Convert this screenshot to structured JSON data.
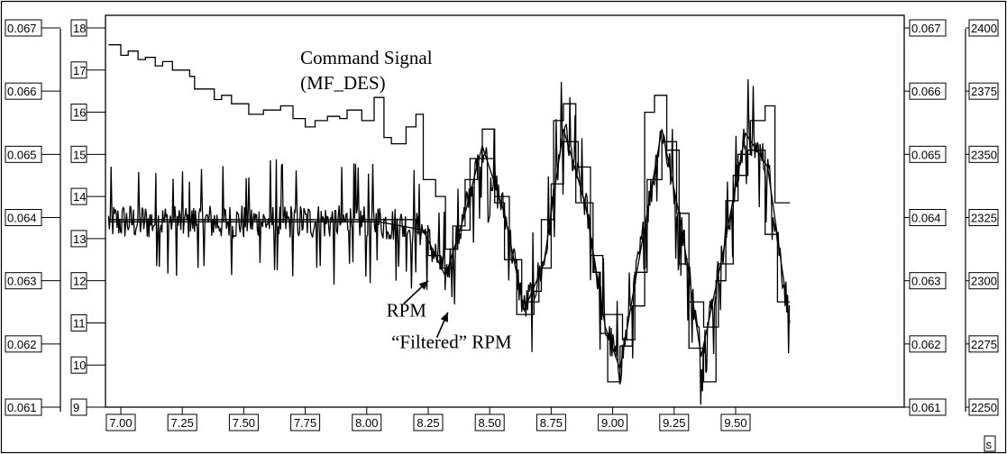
{
  "chart_data": {
    "type": "line",
    "title": "",
    "xlabel": "",
    "x_unit": "s",
    "xlim": [
      6.95,
      9.72
    ],
    "x_ticks": [
      "7.00",
      "7.25",
      "7.50",
      "7.75",
      "8.00",
      "8.25",
      "8.50",
      "8.75",
      "9.00",
      "9.25",
      "9.50"
    ],
    "axes": [
      {
        "id": "left_outer",
        "ticks": [
          "0.067",
          "0.066",
          "0.065",
          "0.064",
          "0.063",
          "0.062",
          "0.061"
        ],
        "lim": [
          0.061,
          0.067
        ]
      },
      {
        "id": "left_inner",
        "ticks": [
          "18",
          "17",
          "16",
          "15",
          "14",
          "13",
          "12",
          "11",
          "10",
          "9"
        ],
        "lim": [
          9,
          18
        ]
      },
      {
        "id": "right_inner",
        "ticks": [
          "0.067",
          "0.066",
          "0.065",
          "0.064",
          "0.063",
          "0.062",
          "0.061"
        ],
        "lim": [
          0.061,
          0.067
        ]
      },
      {
        "id": "right_outer",
        "ticks": [
          "2400",
          "2375",
          "2350",
          "2325",
          "2300",
          "2275",
          "2250"
        ],
        "lim": [
          2250,
          2400
        ]
      }
    ],
    "grid": false,
    "annotations": [
      {
        "text": "Command Signal",
        "x": 7.73,
        "y": 17.15,
        "axis": "left_inner"
      },
      {
        "text": "(MF_DES)",
        "x": 7.73,
        "y": 16.55,
        "axis": "left_inner"
      },
      {
        "text": "RPM",
        "x": 8.08,
        "y": 11.15,
        "axis": "left_inner"
      },
      {
        "text": "“Filtered” RPM",
        "x": 8.1,
        "y": 10.4,
        "axis": "left_inner"
      }
    ],
    "arrows": [
      {
        "from": [
          8.15,
          11.45
        ],
        "to": [
          8.25,
          12.0
        ]
      },
      {
        "from": [
          8.285,
          10.65
        ],
        "to": [
          8.33,
          11.25
        ]
      }
    ],
    "series": [
      {
        "axis": "left_inner",
        "points": [
          [
            6.95,
            17.6
          ],
          [
            7.0,
            17.6
          ],
          [
            7.0,
            17.35
          ],
          [
            7.03,
            17.35
          ],
          [
            7.03,
            17.45
          ],
          [
            7.07,
            17.45
          ],
          [
            7.07,
            17.25
          ],
          [
            7.1,
            17.25
          ],
          [
            7.1,
            17.3
          ],
          [
            7.14,
            17.3
          ],
          [
            7.14,
            17.1
          ],
          [
            7.17,
            17.1
          ],
          [
            7.17,
            17.2
          ],
          [
            7.21,
            17.2
          ],
          [
            7.21,
            17.0
          ],
          [
            7.28,
            17.0
          ],
          [
            7.28,
            16.85
          ],
          [
            7.3,
            16.85
          ],
          [
            7.3,
            16.55
          ],
          [
            7.38,
            16.55
          ],
          [
            7.38,
            16.3
          ],
          [
            7.41,
            16.3
          ],
          [
            7.41,
            16.4
          ],
          [
            7.45,
            16.4
          ],
          [
            7.45,
            16.2
          ],
          [
            7.52,
            16.2
          ],
          [
            7.52,
            15.95
          ],
          [
            7.58,
            15.95
          ],
          [
            7.58,
            16.05
          ],
          [
            7.65,
            16.05
          ],
          [
            7.65,
            16.15
          ],
          [
            7.7,
            16.15
          ],
          [
            7.7,
            15.85
          ],
          [
            7.75,
            15.85
          ],
          [
            7.75,
            15.65
          ],
          [
            7.79,
            15.65
          ],
          [
            7.79,
            15.8
          ],
          [
            7.84,
            15.8
          ],
          [
            7.84,
            15.9
          ],
          [
            7.89,
            15.9
          ],
          [
            7.89,
            15.85
          ],
          [
            7.92,
            15.85
          ],
          [
            7.92,
            16.05
          ],
          [
            7.98,
            16.05
          ],
          [
            7.98,
            15.8
          ],
          [
            8.03,
            15.8
          ],
          [
            8.03,
            16.35
          ],
          [
            8.07,
            16.35
          ],
          [
            8.07,
            15.4
          ],
          [
            8.1,
            15.4
          ],
          [
            8.1,
            15.25
          ],
          [
            8.16,
            15.25
          ],
          [
            8.16,
            15.65
          ],
          [
            8.2,
            15.65
          ],
          [
            8.2,
            15.95
          ],
          [
            8.23,
            15.95
          ],
          [
            8.23,
            14.4
          ],
          [
            8.28,
            14.4
          ],
          [
            8.28,
            14.0
          ],
          [
            8.32,
            14.0
          ],
          [
            8.32,
            12.75
          ],
          [
            8.37,
            12.75
          ],
          [
            8.37,
            13.2
          ],
          [
            8.42,
            13.2
          ],
          [
            8.42,
            14.9
          ],
          [
            8.47,
            14.9
          ],
          [
            8.47,
            15.6
          ],
          [
            8.52,
            15.6
          ],
          [
            8.52,
            13.85
          ],
          [
            8.56,
            13.85
          ],
          [
            8.56,
            12.5
          ],
          [
            8.61,
            12.5
          ],
          [
            8.61,
            11.2
          ],
          [
            8.68,
            11.2
          ],
          [
            8.68,
            11.75
          ],
          [
            8.71,
            11.75
          ],
          [
            8.71,
            13.45
          ],
          [
            8.76,
            13.45
          ],
          [
            8.76,
            15.8
          ],
          [
            8.8,
            15.8
          ],
          [
            8.8,
            16.2
          ],
          [
            8.85,
            16.2
          ],
          [
            8.85,
            13.85
          ],
          [
            8.92,
            13.85
          ],
          [
            8.92,
            12.2
          ],
          [
            8.95,
            12.2
          ],
          [
            8.95,
            10.75
          ],
          [
            8.98,
            10.75
          ],
          [
            8.98,
            9.6
          ],
          [
            9.03,
            9.6
          ],
          [
            9.03,
            10.45
          ],
          [
            9.08,
            10.45
          ],
          [
            9.08,
            11.4
          ],
          [
            9.13,
            11.4
          ],
          [
            9.13,
            16.0
          ],
          [
            9.17,
            16.0
          ],
          [
            9.17,
            16.4
          ],
          [
            9.22,
            16.4
          ],
          [
            9.22,
            15.1
          ],
          [
            9.27,
            15.1
          ],
          [
            9.27,
            12.4
          ],
          [
            9.31,
            12.4
          ],
          [
            9.31,
            10.4
          ],
          [
            9.37,
            10.4
          ],
          [
            9.37,
            9.6
          ],
          [
            9.42,
            9.6
          ],
          [
            9.42,
            12.0
          ],
          [
            9.46,
            12.0
          ],
          [
            9.46,
            13.9
          ],
          [
            9.51,
            13.9
          ],
          [
            9.51,
            15.0
          ],
          [
            9.56,
            15.0
          ],
          [
            9.56,
            15.8
          ],
          [
            9.62,
            15.8
          ],
          [
            9.62,
            16.15
          ],
          [
            9.66,
            16.15
          ],
          [
            9.66,
            13.85
          ],
          [
            9.72,
            13.85
          ]
        ]
      },
      {
        "axis": "left_inner",
        "points": [
          [
            6.95,
            13.45
          ],
          [
            8.2,
            13.45
          ],
          [
            8.2,
            13.15
          ],
          [
            8.25,
            13.15
          ],
          [
            8.25,
            12.6
          ],
          [
            8.3,
            12.6
          ],
          [
            8.3,
            12.3
          ],
          [
            8.35,
            12.3
          ],
          [
            8.35,
            13.3
          ],
          [
            8.4,
            13.3
          ],
          [
            8.4,
            14.4
          ],
          [
            8.45,
            14.4
          ],
          [
            8.45,
            14.9
          ],
          [
            8.52,
            14.9
          ],
          [
            8.52,
            14.0
          ],
          [
            8.58,
            14.0
          ],
          [
            8.58,
            12.5
          ],
          [
            8.63,
            12.5
          ],
          [
            8.63,
            11.5
          ],
          [
            8.7,
            11.5
          ],
          [
            8.7,
            12.3
          ],
          [
            8.75,
            12.3
          ],
          [
            8.75,
            14.3
          ],
          [
            8.8,
            14.3
          ],
          [
            8.8,
            15.3
          ],
          [
            8.86,
            15.3
          ],
          [
            8.86,
            14.7
          ],
          [
            8.91,
            14.7
          ],
          [
            8.91,
            12.6
          ],
          [
            8.96,
            12.6
          ],
          [
            8.96,
            11.2
          ],
          [
            9.04,
            11.2
          ],
          [
            9.04,
            10.6
          ],
          [
            9.09,
            10.6
          ],
          [
            9.09,
            12.2
          ],
          [
            9.14,
            12.2
          ],
          [
            9.14,
            14.4
          ],
          [
            9.2,
            14.4
          ],
          [
            9.2,
            15.3
          ],
          [
            9.26,
            15.3
          ],
          [
            9.26,
            13.6
          ],
          [
            9.31,
            13.6
          ],
          [
            9.31,
            11.5
          ],
          [
            9.37,
            11.5
          ],
          [
            9.37,
            10.9
          ],
          [
            9.43,
            10.9
          ],
          [
            9.43,
            12.4
          ],
          [
            9.49,
            12.4
          ],
          [
            9.49,
            14.5
          ],
          [
            9.55,
            14.5
          ],
          [
            9.55,
            15.1
          ],
          [
            9.62,
            15.1
          ],
          [
            9.62,
            13.1
          ],
          [
            9.67,
            13.1
          ],
          [
            9.67,
            11.5
          ],
          [
            9.72,
            11.5
          ]
        ]
      },
      {
        "axis": "left_inner",
        "points": [
          [
            6.95,
            13.4
          ],
          [
            8.05,
            13.4
          ],
          [
            8.23,
            13.2
          ],
          [
            8.28,
            12.6
          ],
          [
            8.32,
            12.1
          ],
          [
            8.4,
            13.6
          ],
          [
            8.47,
            15.2
          ],
          [
            8.56,
            13.6
          ],
          [
            8.64,
            11.3
          ],
          [
            8.72,
            12.4
          ],
          [
            8.8,
            15.6
          ],
          [
            8.89,
            13.8
          ],
          [
            8.97,
            10.9
          ],
          [
            9.03,
            9.9
          ],
          [
            9.11,
            12.6
          ],
          [
            9.2,
            15.6
          ],
          [
            9.28,
            13.3
          ],
          [
            9.36,
            10.2
          ],
          [
            9.45,
            12.7
          ],
          [
            9.54,
            15.5
          ],
          [
            9.63,
            14.7
          ],
          [
            9.72,
            11.0
          ]
        ]
      }
    ]
  }
}
